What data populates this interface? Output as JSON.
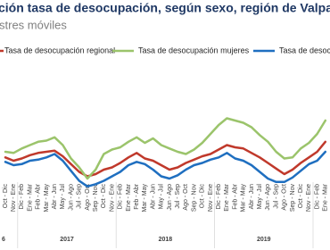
{
  "chart_data": {
    "type": "line",
    "title": "ción tasa de desocupación, según sexo, región de Valparaís",
    "subtitle": "stres móviles",
    "categories": [
      "Oct - Dic",
      "Nov - Ene",
      "Dic - Feb",
      "Ene - Mar",
      "Feb - Abr",
      "Mar - May",
      "Abr - Jun",
      "May - Jul",
      "Jun - Ago",
      "Jul - Sep",
      "Ago - Oct",
      "Sep - Nov",
      "Oct - Dic",
      "Nov - Ene",
      "Dic - Feb",
      "Ene - Mar",
      "Feb - Abr",
      "Mar - May",
      "Abr - Jun",
      "May - Jul",
      "Jun - Ago",
      "Jul - Sep",
      "Ago - Oct",
      "Sep - Nov",
      "Oct - Dic",
      "Nov - Ene",
      "Dic - Feb",
      "Ene - Mar",
      "Feb - Abr",
      "Mar - May",
      "Abr - Jun",
      "May - Jul",
      "Jun - Ago",
      "Jul - Sep",
      "Ago - Oct",
      "Sep - Nov",
      "Oct - Dic",
      "Nov - Ene",
      "Dic - Feb",
      "Ene - Mar"
    ],
    "year_labels": [
      "6",
      "2017",
      "2018",
      "2019"
    ],
    "series": [
      {
        "name": "Tasa de desocupación regional",
        "color": "#c0392b",
        "values": [
          7.5,
          7.2,
          7.4,
          7.7,
          7.9,
          8.0,
          8.1,
          7.6,
          6.9,
          6.2,
          5.8,
          6.0,
          6.4,
          6.6,
          7.0,
          7.5,
          7.9,
          7.4,
          7.2,
          6.8,
          6.4,
          6.6,
          7.0,
          7.3,
          7.6,
          7.8,
          8.2,
          8.6,
          8.4,
          8.3,
          7.9,
          7.5,
          7.0,
          6.5,
          6.0,
          6.4,
          7.0,
          7.5,
          8.0,
          8.9
        ]
      },
      {
        "name": "Tasa de desocupación mujeres",
        "color": "#9bc46b",
        "values": [
          8.0,
          7.9,
          8.3,
          8.6,
          8.9,
          9.0,
          9.3,
          8.6,
          7.4,
          6.6,
          5.6,
          6.4,
          7.8,
          8.2,
          8.4,
          8.9,
          9.3,
          8.8,
          9.2,
          8.6,
          8.3,
          8.0,
          7.8,
          8.2,
          8.8,
          9.6,
          10.4,
          11.0,
          10.8,
          10.6,
          10.2,
          9.5,
          8.9,
          8.0,
          7.4,
          7.5,
          8.3,
          8.8,
          9.6,
          10.8
        ]
      },
      {
        "name": "Tasa de desocupación",
        "color": "#1f6fc0",
        "values": [
          7.1,
          6.8,
          6.9,
          7.2,
          7.3,
          7.5,
          7.8,
          7.2,
          6.3,
          5.4,
          4.9,
          5.1,
          5.4,
          5.8,
          6.2,
          6.8,
          7.1,
          6.9,
          6.4,
          5.8,
          5.6,
          5.9,
          6.4,
          6.8,
          7.0,
          7.3,
          7.5,
          7.9,
          7.4,
          7.2,
          6.8,
          6.2,
          5.6,
          5.3,
          5.3,
          5.7,
          6.3,
          6.9,
          7.2,
          8.0
        ]
      }
    ],
    "ylim": [
      4,
      12
    ]
  }
}
